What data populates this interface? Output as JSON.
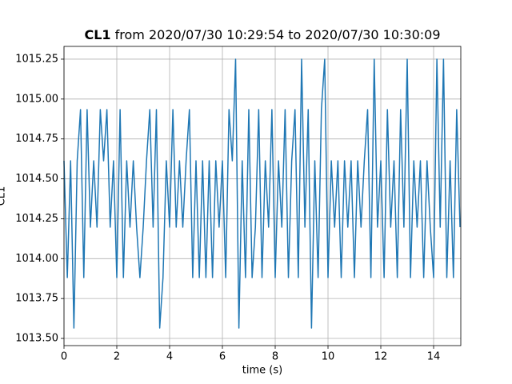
{
  "chart_data": {
    "type": "line",
    "title_name": "CL1",
    "title_rest": "from 2020/07/30 10:29:54 to 2020/07/30 10:30:09",
    "xlabel": "time (s)",
    "ylabel": "CL1",
    "xlim": [
      0,
      15.03
    ],
    "ylim": [
      1013.455,
      1015.33
    ],
    "xticks": [
      0,
      2,
      4,
      6,
      8,
      10,
      12,
      14
    ],
    "yticks": [
      {
        "value": 1013.5,
        "label": "1013.50"
      },
      {
        "value": 1013.75,
        "label": "1013.75"
      },
      {
        "value": 1014.0,
        "label": "1014.00"
      },
      {
        "value": 1014.25,
        "label": "1014.25"
      },
      {
        "value": 1014.5,
        "label": "1014.50"
      },
      {
        "value": 1014.75,
        "label": "1014.75"
      },
      {
        "value": 1015.0,
        "label": "1015.00"
      },
      {
        "value": 1015.25,
        "label": "1015.25"
      }
    ],
    "grid": true,
    "series": [
      {
        "color": "#1f77b4",
        "x": [
          0,
          0.125,
          0.25,
          0.375,
          0.5,
          0.625,
          0.75,
          0.875,
          1,
          1.125,
          1.25,
          1.375,
          1.5,
          1.625,
          1.75,
          1.875,
          2,
          2.125,
          2.25,
          2.375,
          2.5,
          2.625,
          2.75,
          2.875,
          3,
          3.125,
          3.25,
          3.375,
          3.5,
          3.625,
          3.75,
          3.875,
          4,
          4.125,
          4.25,
          4.375,
          4.5,
          4.625,
          4.75,
          4.875,
          5,
          5.125,
          5.25,
          5.375,
          5.5,
          5.625,
          5.75,
          5.875,
          6,
          6.125,
          6.25,
          6.375,
          6.5,
          6.625,
          6.75,
          6.875,
          7,
          7.125,
          7.25,
          7.375,
          7.5,
          7.625,
          7.75,
          7.875,
          8,
          8.125,
          8.25,
          8.375,
          8.5,
          8.625,
          8.75,
          8.875,
          9,
          9.125,
          9.25,
          9.375,
          9.5,
          9.625,
          9.75,
          9.875,
          10,
          10.125,
          10.25,
          10.375,
          10.5,
          10.625,
          10.75,
          10.875,
          11,
          11.125,
          11.25,
          11.375,
          11.5,
          11.625,
          11.75,
          11.875,
          12,
          12.125,
          12.25,
          12.375,
          12.5,
          12.625,
          12.75,
          12.875,
          13,
          13.125,
          13.25,
          13.375,
          13.5,
          13.625,
          13.75,
          13.875,
          14,
          14.125,
          14.25,
          14.375,
          14.5,
          14.625,
          14.75,
          14.875,
          15
        ],
        "values": [
          1014.613,
          1013.881,
          1014.613,
          1013.565,
          1014.613,
          1014.934,
          1013.881,
          1014.934,
          1014.197,
          1014.613,
          1014.197,
          1014.934,
          1014.613,
          1014.934,
          1014.197,
          1014.613,
          1013.881,
          1014.934,
          1013.881,
          1014.613,
          1014.197,
          1014.613,
          1014.197,
          1013.881,
          1014.197,
          1014.613,
          1014.934,
          1014.197,
          1014.934,
          1013.565,
          1013.881,
          1014.613,
          1014.197,
          1014.934,
          1014.197,
          1014.613,
          1014.197,
          1014.613,
          1014.934,
          1013.881,
          1014.613,
          1013.881,
          1014.613,
          1013.881,
          1014.613,
          1013.881,
          1014.613,
          1014.197,
          1014.613,
          1013.881,
          1014.934,
          1014.613,
          1015.25,
          1013.565,
          1014.613,
          1013.881,
          1014.934,
          1013.881,
          1014.197,
          1014.934,
          1013.881,
          1014.613,
          1014.197,
          1014.934,
          1013.881,
          1014.613,
          1014.197,
          1014.934,
          1013.881,
          1014.613,
          1014.934,
          1013.881,
          1015.25,
          1014.197,
          1014.934,
          1013.565,
          1014.613,
          1013.881,
          1014.934,
          1015.25,
          1013.881,
          1014.613,
          1014.197,
          1014.613,
          1013.881,
          1014.613,
          1014.197,
          1014.613,
          1013.881,
          1014.613,
          1014.197,
          1014.613,
          1014.934,
          1013.881,
          1015.25,
          1014.197,
          1014.613,
          1013.881,
          1014.934,
          1014.197,
          1014.613,
          1013.881,
          1014.934,
          1014.197,
          1015.25,
          1013.881,
          1014.613,
          1014.197,
          1014.613,
          1013.881,
          1014.613,
          1014.197,
          1013.881,
          1015.25,
          1014.197,
          1015.25,
          1013.881,
          1014.613,
          1013.881,
          1014.934,
          1014.197
        ]
      }
    ]
  }
}
